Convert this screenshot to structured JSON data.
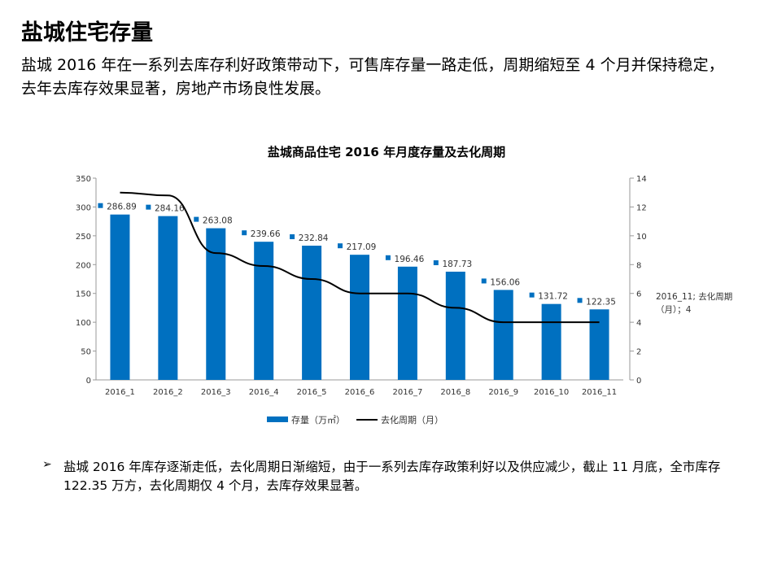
{
  "title": "盐城住宅存量",
  "intro": "盐城 2016 年在一系列去库存利好政策带动下，可售库存量一路走低，周期缩短至 4 个月并保持稳定，去年去库存效果显著，房地产市场良性发展。",
  "bullet": "盐城 2016 年库存逐渐走低，去化周期日渐缩短，由于一系列去库存政策利好以及供应减少，截止 11 月底，全市库存 122.35 万方，去化周期仅 4 个月，去库存效果显著。",
  "chart_data": {
    "type": "bar+line",
    "title": "盐城商品住宅 2016 年月度存量及去化周期",
    "categories": [
      "2016_1",
      "2016_2",
      "2016_3",
      "2016_4",
      "2016_5",
      "2016_6",
      "2016_7",
      "2016_8",
      "2016_9",
      "2016_10",
      "2016_11"
    ],
    "series": [
      {
        "name": "存量（万㎡）",
        "type": "bar",
        "axis": "left",
        "color": "#0070C0",
        "values": [
          286.89,
          284.16,
          263.08,
          239.66,
          232.84,
          217.09,
          196.46,
          187.73,
          156.06,
          131.72,
          122.35
        ]
      },
      {
        "name": "去化周期（月）",
        "type": "line",
        "axis": "right",
        "color": "#000000",
        "values": [
          13,
          12.8,
          8.8,
          7.9,
          7,
          6,
          6,
          5,
          4,
          4,
          4
        ]
      }
    ],
    "y_left": {
      "range": [
        0,
        350
      ],
      "ticks": [
        0,
        50,
        100,
        150,
        200,
        250,
        300,
        350
      ]
    },
    "y_right": {
      "range": [
        0,
        14
      ],
      "ticks": [
        0,
        2,
        4,
        6,
        8,
        10,
        12,
        14
      ]
    },
    "legend": "bottom"
  }
}
